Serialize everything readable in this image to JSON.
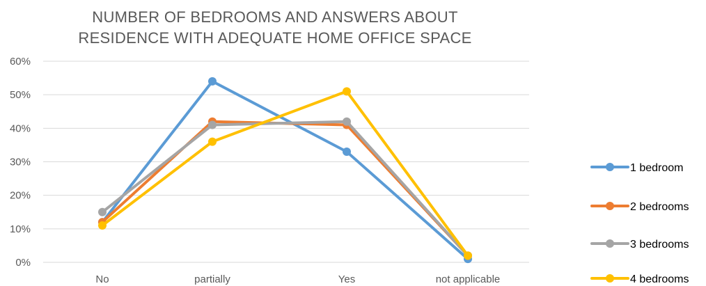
{
  "chart_data": {
    "type": "line",
    "title_lines": [
      "NUMBER OF BEDROOMS AND ANSWERS ABOUT",
      "RESIDENCE WITH ADEQUATE HOME OFFICE SPACE"
    ],
    "categories": [
      "No",
      "partially",
      "Yes",
      "not applicable"
    ],
    "ylim": [
      0,
      0.6
    ],
    "yticks": [
      0,
      0.1,
      0.2,
      0.3,
      0.4,
      0.5,
      0.6
    ],
    "ytick_labels": [
      "0%",
      "10%",
      "20%",
      "30%",
      "40%",
      "50%",
      "60%"
    ],
    "grid": true,
    "legend_position": "right",
    "series": [
      {
        "name": "1 bedroom",
        "color": "#5B9BD5",
        "values": [
          0.12,
          0.54,
          0.33,
          0.01
        ]
      },
      {
        "name": "2 bedrooms",
        "color": "#ED7D31",
        "values": [
          0.12,
          0.42,
          0.41,
          0.02
        ]
      },
      {
        "name": "3 bedrooms",
        "color": "#A5A5A5",
        "values": [
          0.15,
          0.41,
          0.42,
          0.02
        ]
      },
      {
        "name": "4 bedrooms",
        "color": "#FFC000",
        "values": [
          0.11,
          0.36,
          0.51,
          0.02
        ]
      }
    ]
  }
}
